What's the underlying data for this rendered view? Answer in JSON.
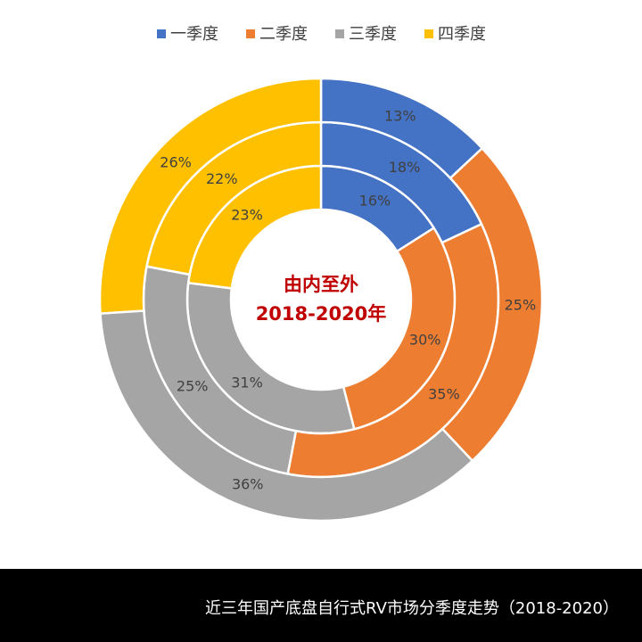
{
  "chart_data": {
    "type": "multi-ring-donut",
    "annotations": [
      "由内至外",
      "2018-2020年"
    ],
    "series": [
      {
        "name": "一季度",
        "color": "#4472c4",
        "values": [
          16,
          18,
          13
        ],
        "value_labels": [
          "16%",
          "18%",
          "13%"
        ]
      },
      {
        "name": "二季度",
        "color": "#ed7d31",
        "values": [
          30,
          35,
          25
        ],
        "value_labels": [
          "30%",
          "35%",
          "25%"
        ]
      },
      {
        "name": "三季度",
        "color": "#a5a5a5",
        "values": [
          31,
          25,
          36
        ],
        "value_labels": [
          "31%",
          "25%",
          "36%"
        ]
      },
      {
        "name": "四季度",
        "color": "#ffc000",
        "values": [
          23,
          22,
          26
        ],
        "value_labels": [
          "23%",
          "22%",
          "26%"
        ]
      }
    ],
    "legend": "top"
  },
  "footer": {
    "text": "近三年国产底盘自行式RV市场分季度走势（2018-2020）"
  }
}
